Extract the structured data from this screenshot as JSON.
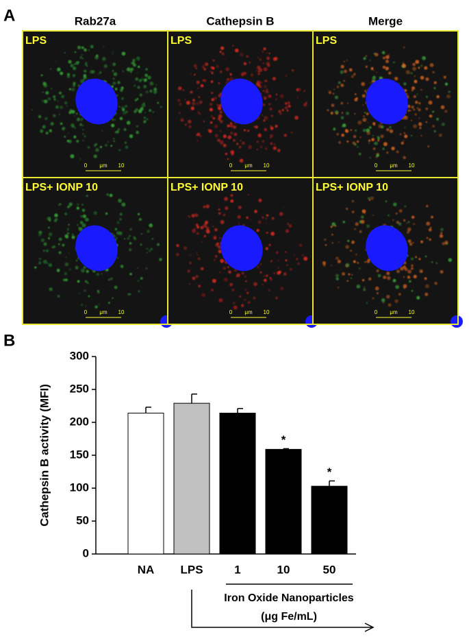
{
  "panel_a": {
    "label": "A",
    "columns": [
      "Rab27a",
      "Cathepsin B",
      "Merge"
    ],
    "rows": [
      "LPS",
      "LPS+ IONP 10"
    ],
    "scale_bar": [
      "0",
      "μm",
      "10"
    ]
  },
  "chart_data": {
    "type": "bar",
    "panel_label": "B",
    "ylabel": "Cathepsin B activity (MFI)",
    "categories": [
      "NA",
      "LPS",
      "1",
      "10",
      "50"
    ],
    "values": [
      214,
      229,
      214,
      159,
      103
    ],
    "errors": [
      9,
      14,
      7,
      1,
      8
    ],
    "colors": [
      "#ffffff",
      "#c0c0c0",
      "#000000",
      "#000000",
      "#000000"
    ],
    "significance": [
      null,
      null,
      null,
      "*",
      "*"
    ],
    "group_label": "Iron Oxide Nanoparticles",
    "group_unit": "(μg Fe/mL)",
    "ylim": [
      0,
      300
    ],
    "yticks": [
      0,
      50,
      100,
      150,
      200,
      250,
      300
    ],
    "grid": false
  }
}
